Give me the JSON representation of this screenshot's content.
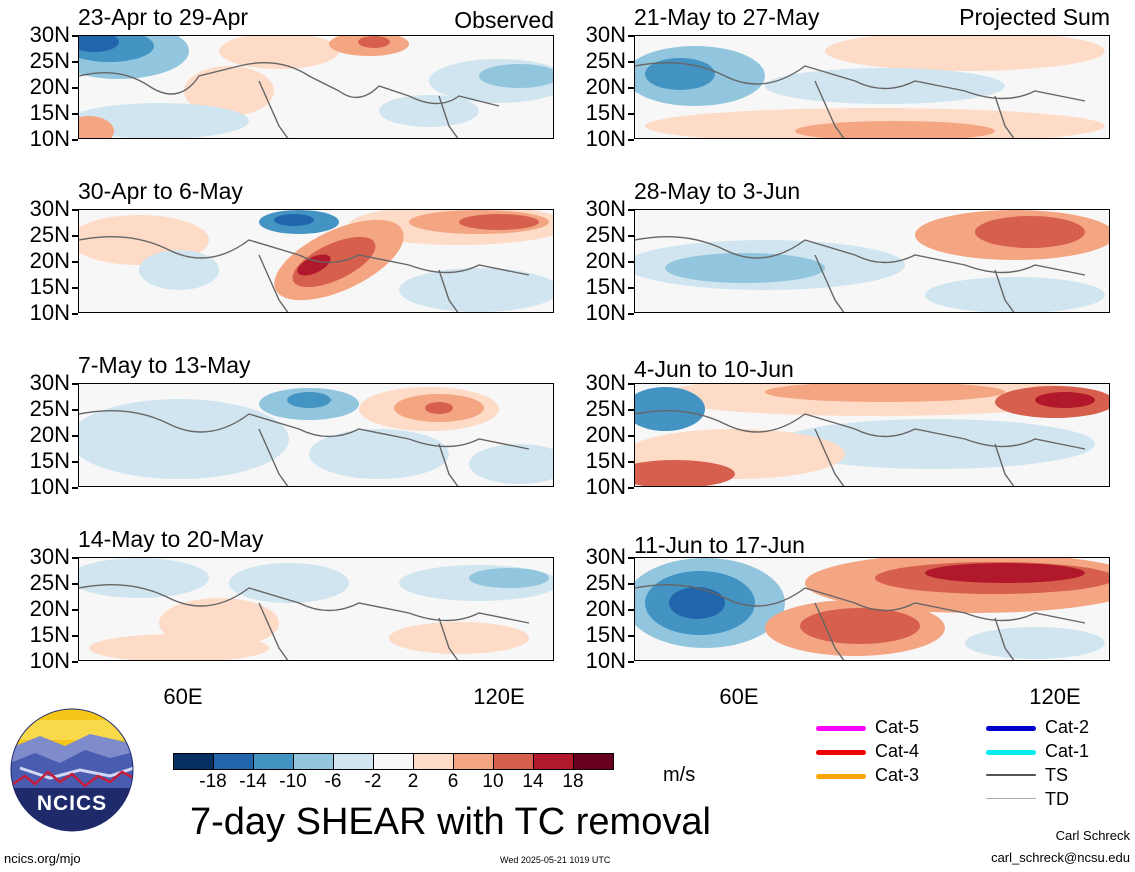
{
  "left_column_tag": "Observed",
  "right_column_tag": "Projected Sum",
  "panels_left": [
    {
      "title": "23-Apr to 29-Apr"
    },
    {
      "title": "30-Apr to 6-May"
    },
    {
      "title": "7-May to 13-May"
    },
    {
      "title": "14-May to 20-May"
    }
  ],
  "panels_right": [
    {
      "title": "21-May to 27-May"
    },
    {
      "title": "28-May to 3-Jun"
    },
    {
      "title": "4-Jun to 10-Jun"
    },
    {
      "title": "11-Jun to 17-Jun"
    }
  ],
  "lat_labels": [
    "30N",
    "25N",
    "20N",
    "15N",
    "10N"
  ],
  "lon_labels": [
    "60E",
    "120E"
  ],
  "colorbar": {
    "colors": [
      "#053061",
      "#2166ac",
      "#4393c3",
      "#92c5de",
      "#d1e5f0",
      "#f7f7f7",
      "#fddbc7",
      "#f4a582",
      "#d6604d",
      "#b2182b",
      "#67001f"
    ],
    "labels": [
      "-18",
      "-14",
      "-10",
      "-6",
      "-2",
      "2",
      "6",
      "10",
      "14",
      "18"
    ],
    "units": "m/s"
  },
  "figure_title": "7-day SHEAR with TC removal",
  "logo_text": "NCICS",
  "legend": [
    {
      "label": "Cat-5",
      "color": "#ff00ff"
    },
    {
      "label": "Cat-4",
      "color": "#ee0000"
    },
    {
      "label": "Cat-3",
      "color": "#ffa500"
    },
    {
      "label": "Cat-2",
      "color": "#0000cc"
    },
    {
      "label": "Cat-1",
      "color": "#00eeee"
    },
    {
      "label": "TS",
      "color": "#555555"
    },
    {
      "label": "TD",
      "color": "#aaaaaa"
    }
  ],
  "footer": {
    "url": "ncics.org/mjo",
    "timestamp": "Wed 2025-05-21 1019 UTC",
    "author": "Carl Schreck",
    "email": "carl_schreck@ncsu.edu"
  }
}
